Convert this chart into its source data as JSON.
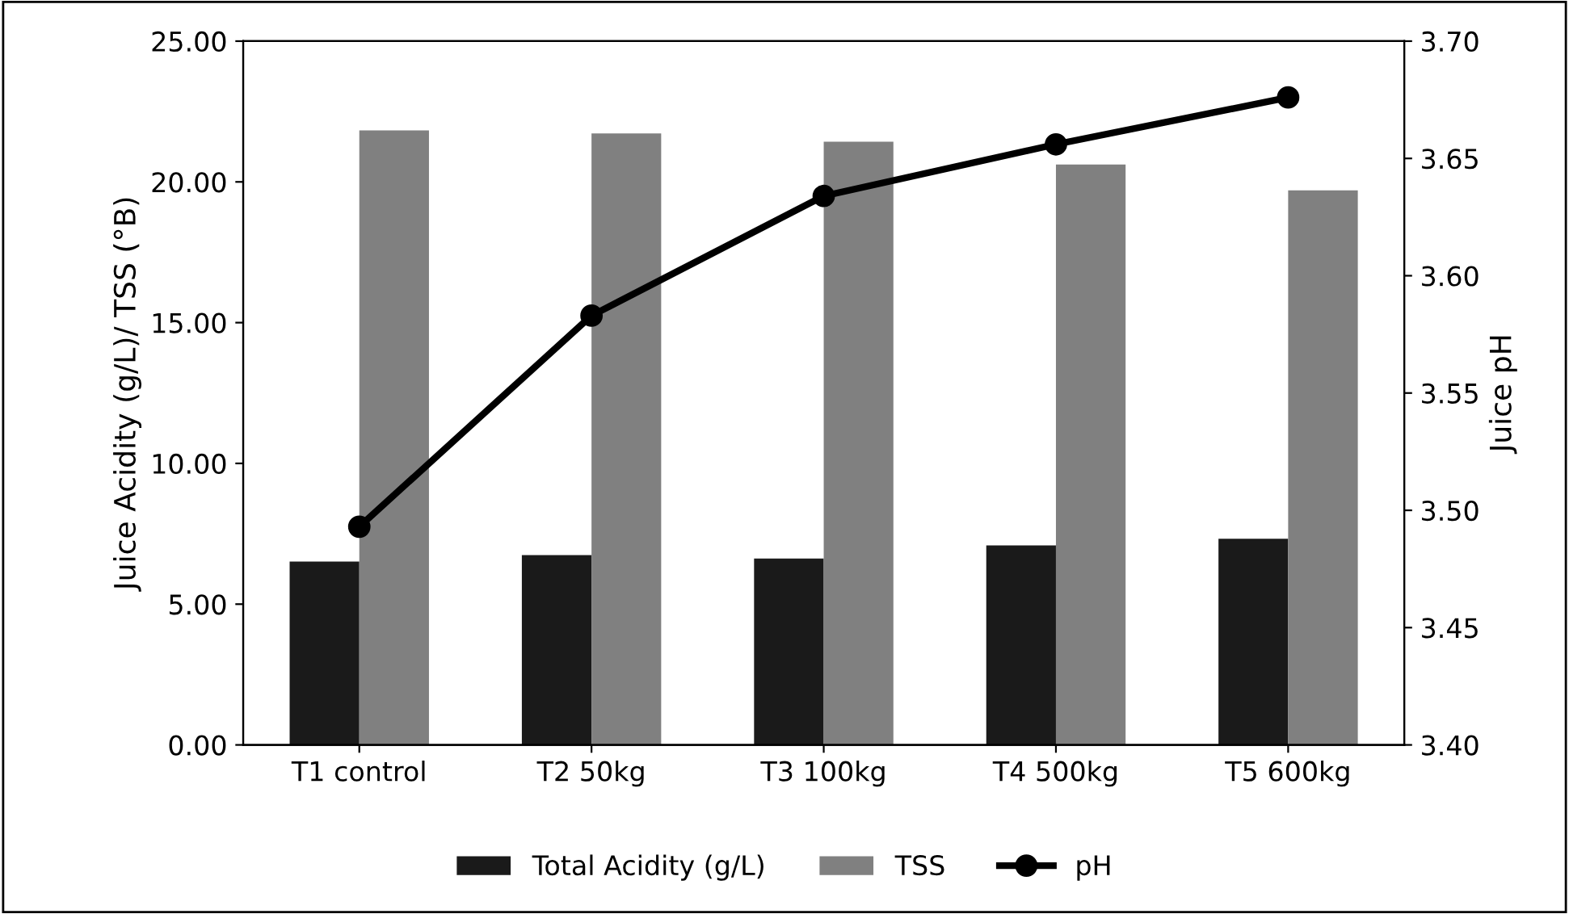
{
  "chart_data": {
    "type": "bar",
    "ylabel": "Juice Acidity (g/L)/ TSS (°B)",
    "y2label": "Juice pH",
    "categories": [
      "T1 control",
      "T2 50kg",
      "T3 100kg",
      "T4 500kg",
      "T5 600kg"
    ],
    "series": [
      {
        "name": "Total Acidity (g/L)",
        "color": "#1a1a1a",
        "values": [
          6.51,
          6.74,
          6.62,
          7.09,
          7.32
        ]
      },
      {
        "name": "TSS",
        "color": "#808080",
        "values": [
          21.83,
          21.72,
          21.43,
          20.62,
          19.7
        ]
      },
      {
        "name": "pH",
        "type": "line",
        "axis": "y2",
        "color": "#000000",
        "marker": "circle",
        "line_style": "solid",
        "values": [
          3.493,
          3.583,
          3.634,
          3.656,
          3.676
        ]
      }
    ],
    "ylim": [
      0,
      25
    ],
    "yticks": [
      {
        "value": 0,
        "label": "0.00"
      },
      {
        "value": 5,
        "label": "5.00"
      },
      {
        "value": 10,
        "label": "10.00"
      },
      {
        "value": 15,
        "label": "15.00"
      },
      {
        "value": 20,
        "label": "20.00"
      },
      {
        "value": 25,
        "label": "25.00"
      }
    ],
    "y2lim": [
      3.4,
      3.7
    ],
    "y2ticks": [
      {
        "value": 3.4,
        "label": "3.40"
      },
      {
        "value": 3.45,
        "label": "3.45"
      },
      {
        "value": 3.5,
        "label": "3.50"
      },
      {
        "value": 3.55,
        "label": "3.55"
      },
      {
        "value": 3.6,
        "label": "3.60"
      },
      {
        "value": 3.65,
        "label": "3.65"
      },
      {
        "value": 3.7,
        "label": "3.70"
      }
    ],
    "grid": false,
    "legend": "bottom"
  }
}
